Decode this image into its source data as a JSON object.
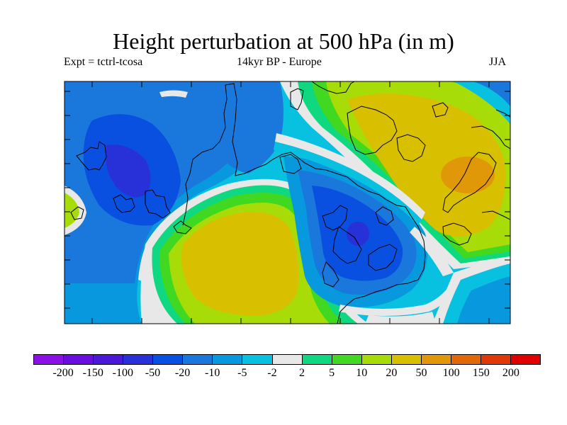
{
  "title": "Height perturbation at 500 hPa (in m)",
  "expt_label": "Expt = tctrl-tcosa",
  "period_label": "14kyr BP - Europe",
  "season_label": "JJA",
  "colorbar": {
    "colors": [
      "#8a10e6",
      "#6a0ee0",
      "#4a18d8",
      "#2830d8",
      "#0a50e0",
      "#1a78dd",
      "#0898dd",
      "#08c0e0",
      "#e8e8e8",
      "#10d880",
      "#40d820",
      "#a8dc08",
      "#d8c000",
      "#e09808",
      "#e06808",
      "#e03808",
      "#e00000"
    ],
    "labels": [
      "-200",
      "-150",
      "-100",
      "-50",
      "-20",
      "-10",
      "-5",
      "-2",
      "2",
      "5",
      "10",
      "20",
      "50",
      "100",
      "150",
      "200"
    ]
  }
}
